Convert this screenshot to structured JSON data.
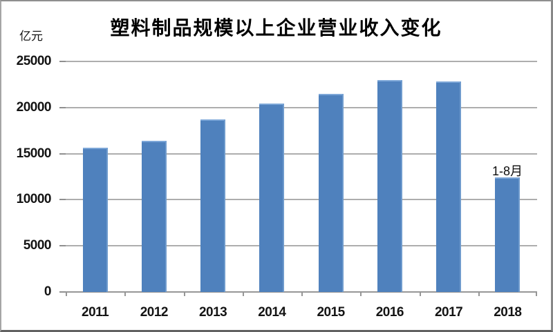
{
  "chart_data": {
    "type": "bar",
    "title": "塑料制品规模以上企业营业收入变化",
    "unit_label": "亿元",
    "categories": [
      "2011",
      "2012",
      "2013",
      "2014",
      "2015",
      "2016",
      "2017",
      "2018"
    ],
    "values": [
      15650,
      16400,
      18700,
      20450,
      21500,
      22950,
      22800,
      12400
    ],
    "yticks": [
      0,
      5000,
      10000,
      15000,
      20000,
      25000
    ],
    "ylim": [
      0,
      25000
    ],
    "ylabel": "亿元",
    "xlabel": "",
    "grid": true,
    "legend": false,
    "annotation": {
      "text": "1-8月",
      "category": "2018"
    },
    "colors": {
      "bar_fill": "#4f81bd",
      "bar_edge_light": "#7da7d8",
      "gridline": "#adadad",
      "axis": "#969696",
      "text": "#141414",
      "title": "#000000",
      "background": "#ffffff"
    }
  }
}
